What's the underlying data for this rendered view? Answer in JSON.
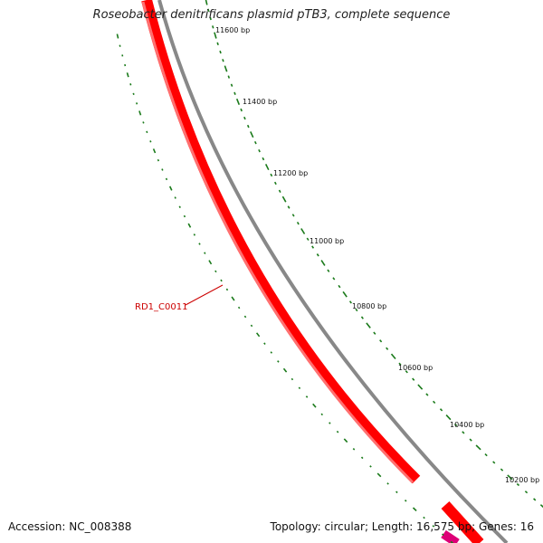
{
  "title": "Roseobacter denitrificans plasmid pTB3, complete sequence",
  "accession": "Accession: NC_008388",
  "summary": "Topology: circular; Length: 16,575 bp; Genes: 16",
  "gene_label": "RD1_C0011",
  "ruler_labels": [
    "11600 bp",
    "11400 bp",
    "11200 bp",
    "11000 bp",
    "10800 bp",
    "10600 bp",
    "10400 bp",
    "10200 bp"
  ],
  "colors": {
    "gene_forward": "#ff0000",
    "gene_other": "#dd0077",
    "backbone": "#888888",
    "ticks": "#1a7a1a",
    "label": "#cc0000"
  }
}
